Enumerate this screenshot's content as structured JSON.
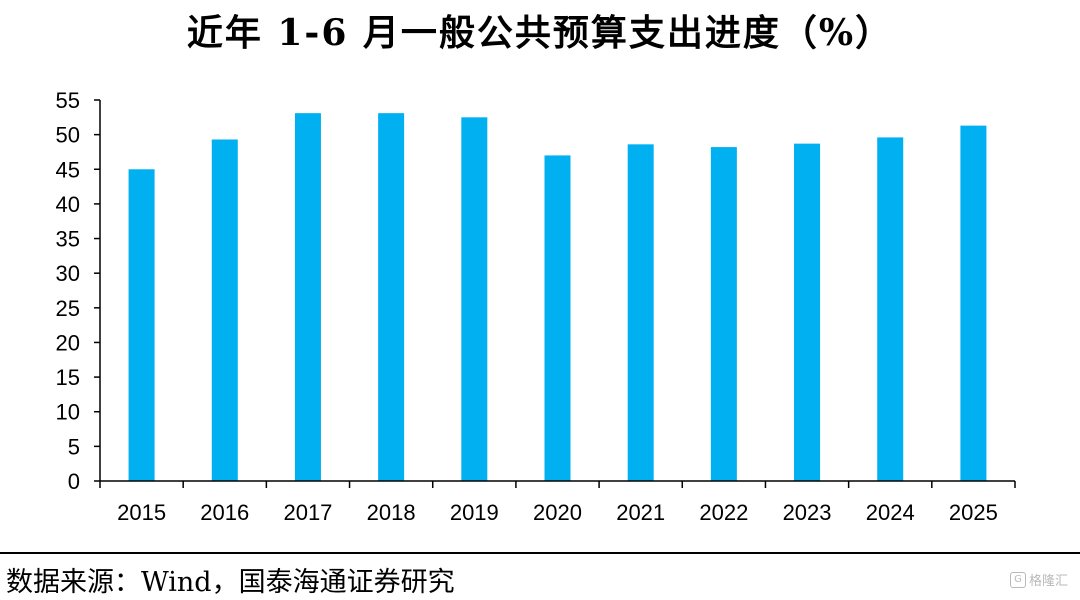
{
  "chart_data": {
    "type": "bar",
    "title": "近年 1-6 月一般公共预算支出进度（%）",
    "categories": [
      "2015",
      "2016",
      "2017",
      "2018",
      "2019",
      "2020",
      "2021",
      "2022",
      "2023",
      "2024",
      "2025"
    ],
    "values": [
      45.0,
      49.3,
      53.1,
      53.1,
      52.5,
      47.0,
      48.6,
      48.2,
      48.7,
      49.6,
      51.3
    ],
    "ylim": [
      0,
      55
    ],
    "yticks": [
      0,
      5,
      10,
      15,
      20,
      25,
      30,
      35,
      40,
      45,
      50,
      55
    ],
    "xlabel": "",
    "ylabel": "",
    "grid": false,
    "bar_color": "#00B0F0"
  },
  "footer": {
    "source": "数据来源：Wind，国泰海通证券研究"
  },
  "watermark": {
    "logo": "G",
    "text": "格隆汇"
  }
}
